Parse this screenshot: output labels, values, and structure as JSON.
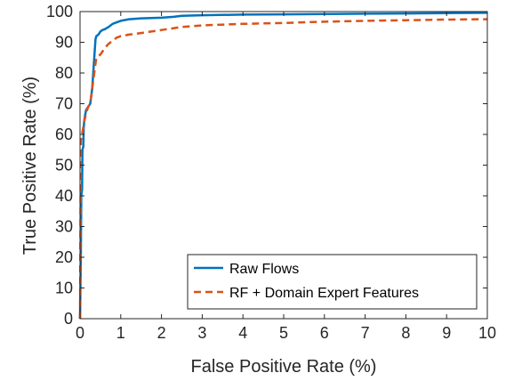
{
  "chart_data": {
    "type": "line",
    "title": "",
    "xlabel": "False Positive Rate (%)",
    "ylabel": "True Positive Rate (%)",
    "xlim": [
      0,
      10
    ],
    "ylim": [
      0,
      100
    ],
    "xticks": [
      "0",
      "1",
      "2",
      "3",
      "4",
      "5",
      "6",
      "7",
      "8",
      "9",
      "10"
    ],
    "yticks": [
      "0",
      "10",
      "20",
      "30",
      "40",
      "50",
      "60",
      "70",
      "80",
      "90",
      "100"
    ],
    "grid": false,
    "legend_position": "bottom-right",
    "series": [
      {
        "name": "Raw Flows",
        "color": "#0072BD",
        "style": "solid",
        "x": [
          0,
          0.02,
          0.03,
          0.05,
          0.06,
          0.08,
          0.09,
          0.1,
          0.12,
          0.15,
          0.2,
          0.25,
          0.3,
          0.35,
          0.38,
          0.4,
          0.45,
          0.5,
          0.55,
          0.6,
          0.7,
          0.8,
          0.9,
          1.0,
          1.2,
          1.5,
          2.0,
          2.3,
          2.5,
          3.0,
          4.0,
          5.0,
          6.0,
          7.0,
          8.0,
          9.0,
          10.0
        ],
        "y": [
          0,
          20,
          40,
          42,
          55,
          56,
          62,
          64,
          66,
          68,
          69,
          70,
          75,
          85,
          91,
          92,
          92.5,
          93.5,
          94,
          94.2,
          95,
          96,
          96.5,
          97,
          97.5,
          97.8,
          98,
          98.3,
          98.6,
          98.8,
          99,
          99.1,
          99.2,
          99.3,
          99.4,
          99.5,
          99.6
        ]
      },
      {
        "name": "RF + Domain Expert Features",
        "color": "#D95319",
        "style": "dashed",
        "x": [
          0,
          0.01,
          0.02,
          0.05,
          0.1,
          0.15,
          0.2,
          0.25,
          0.3,
          0.35,
          0.4,
          0.45,
          0.5,
          0.6,
          0.7,
          0.8,
          0.9,
          1.0,
          1.2,
          1.5,
          2.0,
          2.5,
          3.0,
          4.0,
          5.0,
          6.0,
          7.0,
          8.0,
          9.0,
          10.0
        ],
        "y": [
          0,
          30,
          58,
          60,
          64,
          67,
          69,
          70,
          75,
          80,
          85,
          85.5,
          86,
          88,
          89.5,
          90.5,
          91.5,
          92,
          92.5,
          93,
          94,
          95,
          95.5,
          96,
          96.3,
          96.7,
          97,
          97.2,
          97.4,
          97.5
        ]
      }
    ]
  }
}
